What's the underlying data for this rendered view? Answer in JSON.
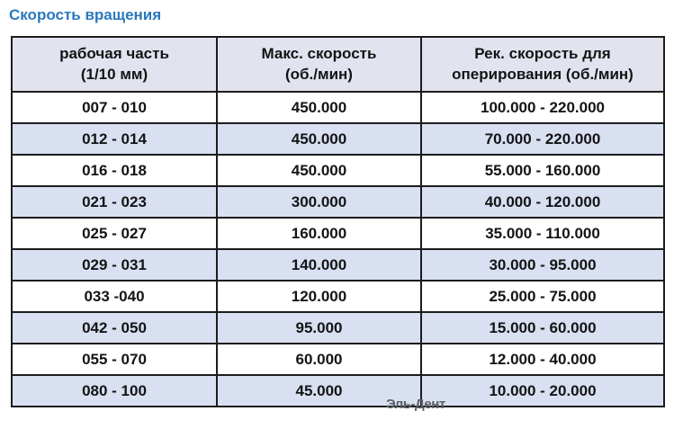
{
  "title": "Скорость вращения",
  "watermark": "Эль-Дент",
  "colors": {
    "title_blue": "#2a79bd",
    "header_bg": "#e1e4ef",
    "alt_row_bg": "#d9e0f2",
    "border": "#1c1c1c",
    "watermark_gray": "#5c5f66"
  },
  "table": {
    "headers": [
      {
        "line1": "рабочая часть",
        "line2": "(1/10 мм)"
      },
      {
        "line1": "Макс. скорость",
        "line2": "(об./мин)"
      },
      {
        "line1": "Рек. скорость для",
        "line2": "оперирования (об./мин)"
      }
    ],
    "rows": [
      {
        "working_part": "007 - 010",
        "max_speed": "450.000",
        "rec_speed": "100.000 - 220.000"
      },
      {
        "working_part": "012 - 014",
        "max_speed": "450.000",
        "rec_speed": "70.000 - 220.000"
      },
      {
        "working_part": "016 - 018",
        "max_speed": "450.000",
        "rec_speed": "55.000 - 160.000"
      },
      {
        "working_part": "021 - 023",
        "max_speed": "300.000",
        "rec_speed": "40.000 - 120.000"
      },
      {
        "working_part": "025 - 027",
        "max_speed": "160.000",
        "rec_speed": "35.000 - 110.000"
      },
      {
        "working_part": "029 - 031",
        "max_speed": "140.000",
        "rec_speed": "30.000 - 95.000"
      },
      {
        "working_part": "033 -040",
        "max_speed": "120.000",
        "rec_speed": "25.000 - 75.000"
      },
      {
        "working_part": "042 - 050",
        "max_speed": "95.000",
        "rec_speed": "15.000 - 60.000"
      },
      {
        "working_part": "055 - 070",
        "max_speed": "60.000",
        "rec_speed": "12.000 - 40.000"
      },
      {
        "working_part": "080 - 100",
        "max_speed": "45.000",
        "rec_speed": "10.000 - 20.000"
      }
    ]
  }
}
